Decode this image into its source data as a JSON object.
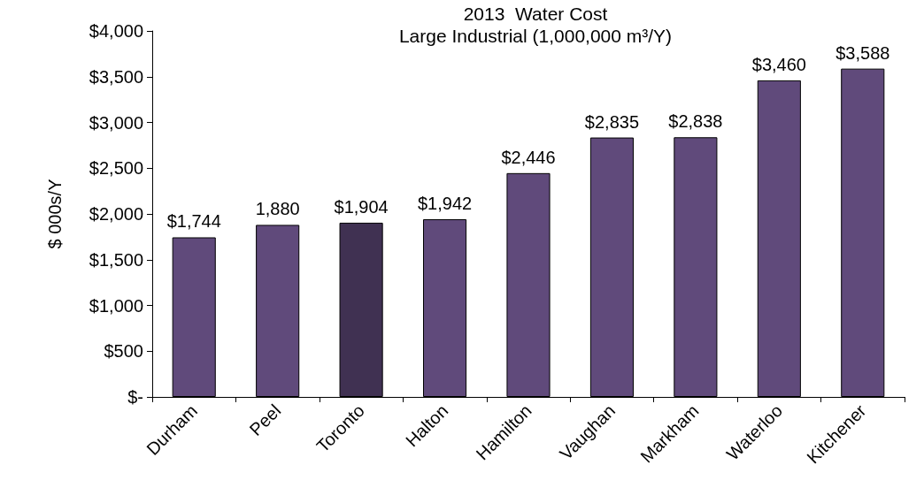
{
  "chart_data": {
    "type": "bar",
    "title": "2013  Water Cost",
    "subtitle": "Large Industrial (1,000,000 m³/Y)",
    "ylabel": "$ 000s/Y",
    "categories": [
      "Durham",
      "Peel",
      "Toronto",
      "Halton",
      "Hamilton",
      "Vaughan",
      "Markham",
      "Waterloo",
      "Kitchener"
    ],
    "values": [
      1744,
      1880,
      1904,
      1942,
      2446,
      2835,
      2838,
      3460,
      3588
    ],
    "colors": [
      "#604a7b",
      "#604a7b",
      "#403152",
      "#604a7b",
      "#604a7b",
      "#604a7b",
      "#604a7b",
      "#604a7b",
      "#604a7b"
    ],
    "value_labels": [
      "$1,744",
      "1,880",
      "$1,904",
      "$1,942",
      "$2,446",
      "$2,835",
      "$2,838",
      "$3,460",
      "$3,588"
    ],
    "ylim": [
      0,
      4000
    ],
    "yticks": [
      {
        "value": 0,
        "label": "$-"
      },
      {
        "value": 500,
        "label": "$500"
      },
      {
        "value": 1000,
        "label": "$1,000"
      },
      {
        "value": 1500,
        "label": "$1,500"
      },
      {
        "value": 2000,
        "label": "$2,000"
      },
      {
        "value": 2500,
        "label": "$2,500"
      },
      {
        "value": 3000,
        "label": "$3,000"
      },
      {
        "value": 3500,
        "label": "$3,500"
      },
      {
        "value": 4000,
        "label": "$4,000"
      }
    ],
    "grid": false
  }
}
